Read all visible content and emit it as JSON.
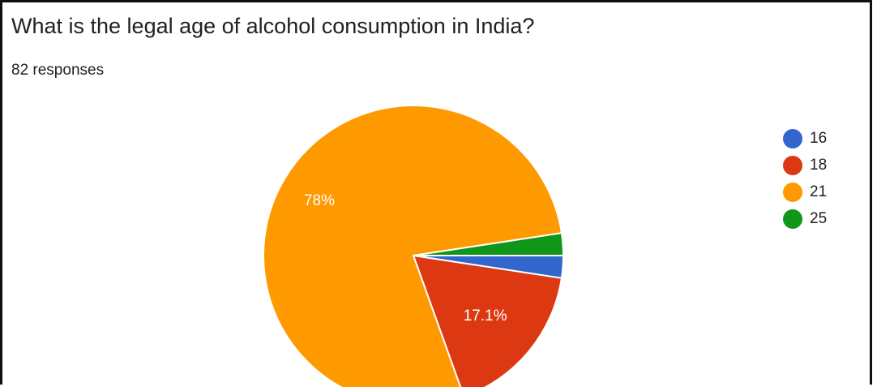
{
  "question": {
    "title": "What is the legal age of alcohol consumption in India?",
    "responses": "82 responses"
  },
  "chart_data": {
    "type": "pie",
    "categories": [
      "16",
      "18",
      "21",
      "25"
    ],
    "values": [
      2.4,
      17.1,
      78,
      2.4
    ],
    "data_labels": [
      "",
      "17.1%",
      "78%",
      ""
    ],
    "colors": [
      "#3366cc",
      "#dc3912",
      "#ff9900",
      "#109618"
    ],
    "start_angle_deg": 90,
    "direction": "clockwise",
    "legend_position": "right"
  }
}
